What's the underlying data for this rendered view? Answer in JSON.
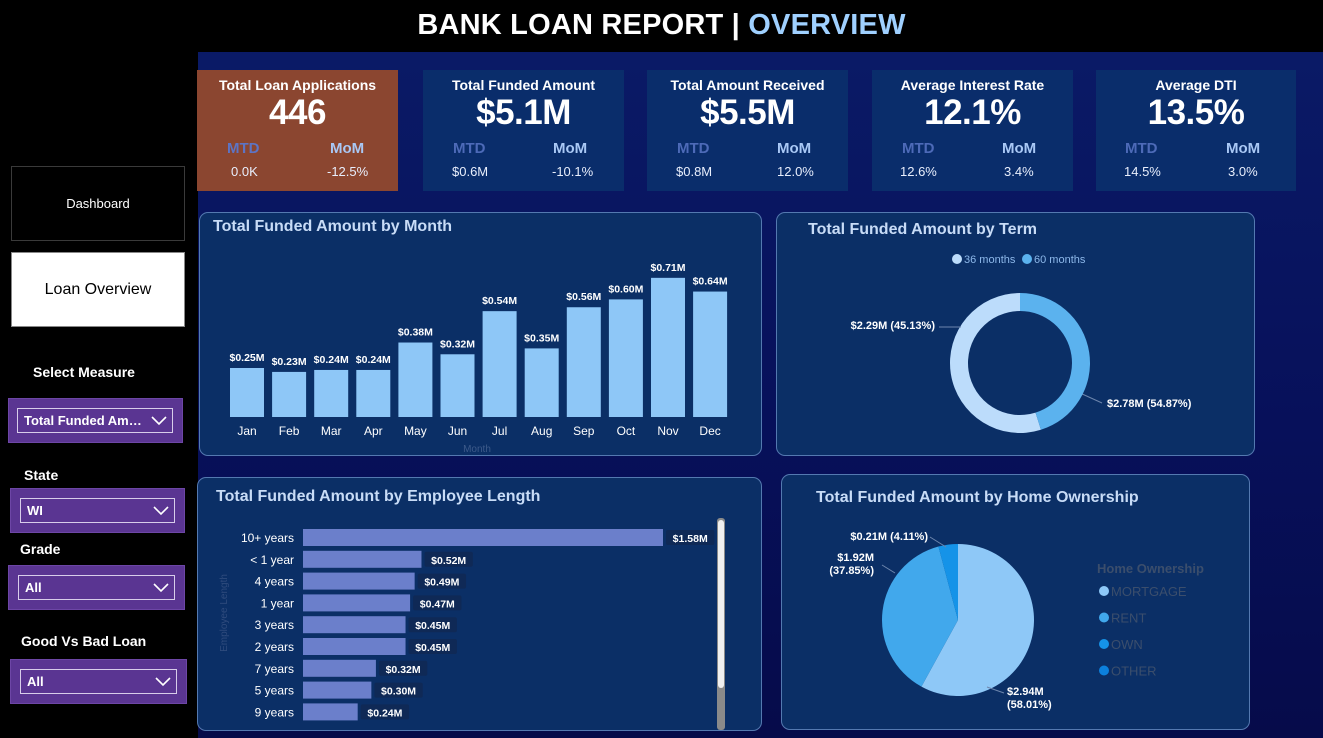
{
  "title": {
    "main": "BANK LOAN REPORT | ",
    "accent": "OVERVIEW"
  },
  "nav": {
    "dashboard": "Dashboard",
    "overview": "Loan Overview"
  },
  "slicers": {
    "measure": {
      "label": "Select Measure",
      "value": "Total Funded Amo..."
    },
    "state": {
      "label": "State",
      "value": "WI"
    },
    "grade": {
      "label": "Grade",
      "value": "All"
    },
    "loan": {
      "label": "Good Vs Bad Loan",
      "value": "All"
    }
  },
  "kpis": [
    {
      "title": "Total Loan Applications",
      "value": "446",
      "mtd_label": "MTD",
      "mom_label": "MoM",
      "mtd": "0.0K",
      "mom": "-12.5%"
    },
    {
      "title": "Total Funded Amount",
      "value": "$5.1M",
      "mtd_label": "MTD",
      "mom_label": "MoM",
      "mtd": "$0.6M",
      "mom": "-10.1%"
    },
    {
      "title": "Total Amount Received",
      "value": "$5.5M",
      "mtd_label": "MTD",
      "mom_label": "MoM",
      "mtd": "$0.8M",
      "mom": "12.0%"
    },
    {
      "title": "Average Interest Rate",
      "value": "12.1%",
      "mtd_label": "MTD",
      "mom_label": "MoM",
      "mtd": "12.6%",
      "mom": "3.4%"
    },
    {
      "title": "Average DTI",
      "value": "13.5%",
      "mtd_label": "MTD",
      "mom_label": "MoM",
      "mtd": "14.5%",
      "mom": "3.0%"
    }
  ],
  "colors": {
    "bar_month": "#8ec7f7",
    "bar_emp": "#6b7fcb",
    "term_36": "#bcdcfb",
    "term_60": "#5bb2ee",
    "own_mortgage": "#8ec8f7",
    "own_rent": "#41a8ec",
    "own_own": "#1593e8",
    "own_other": "#0c80dc"
  },
  "chart_data": [
    {
      "type": "bar",
      "title": "Total Funded Amount by Month",
      "xlabel": "Month",
      "categories": [
        "Jan",
        "Feb",
        "Mar",
        "Apr",
        "May",
        "Jun",
        "Jul",
        "Aug",
        "Sep",
        "Oct",
        "Nov",
        "Dec"
      ],
      "values": [
        0.25,
        0.23,
        0.24,
        0.24,
        0.38,
        0.32,
        0.54,
        0.35,
        0.56,
        0.6,
        0.71,
        0.64
      ],
      "labels": [
        "$0.25M",
        "$0.23M",
        "$0.24M",
        "$0.24M",
        "$0.38M",
        "$0.32M",
        "$0.54M",
        "$0.35M",
        "$0.56M",
        "$0.60M",
        "$0.71M",
        "$0.64M"
      ],
      "unit": "$M",
      "ylim": [
        0,
        0.75
      ]
    },
    {
      "type": "pie",
      "donut": true,
      "title": "Total Funded Amount by Term",
      "categories": [
        "36 months",
        "60 months"
      ],
      "values": [
        2.78,
        2.29
      ],
      "percents": [
        54.87,
        45.13
      ],
      "labels": [
        "$2.78M (54.87%)",
        "$2.29M (45.13%)"
      ],
      "legend": "top-center"
    },
    {
      "type": "bar",
      "orientation": "horizontal",
      "title": "Total Funded Amount by Employee Length",
      "ylabel": "Employee Length",
      "categories": [
        "10+ years",
        "< 1 year",
        "4 years",
        "1 year",
        "3 years",
        "2 years",
        "7 years",
        "5 years",
        "9 years"
      ],
      "values": [
        1.58,
        0.52,
        0.49,
        0.47,
        0.45,
        0.45,
        0.32,
        0.3,
        0.24
      ],
      "labels": [
        "$1.58M",
        "$0.52M",
        "$0.49M",
        "$0.47M",
        "$0.45M",
        "$0.45M",
        "$0.32M",
        "$0.30M",
        "$0.24M"
      ],
      "unit": "$M"
    },
    {
      "type": "pie",
      "title": "Total Funded Amount by Home Ownership",
      "legend_title": "Home Ownership",
      "categories": [
        "MORTGAGE",
        "RENT",
        "OWN",
        "OTHER"
      ],
      "values": [
        2.94,
        1.92,
        0.21,
        0.0
      ],
      "percents": [
        58.01,
        37.85,
        4.11,
        0.03
      ],
      "labels": [
        [
          "$2.94M",
          "(58.01%)"
        ],
        [
          "$1.92M",
          "(37.85%)"
        ],
        [
          "$0.21M (4.11%)"
        ],
        []
      ],
      "legend": "right"
    }
  ]
}
